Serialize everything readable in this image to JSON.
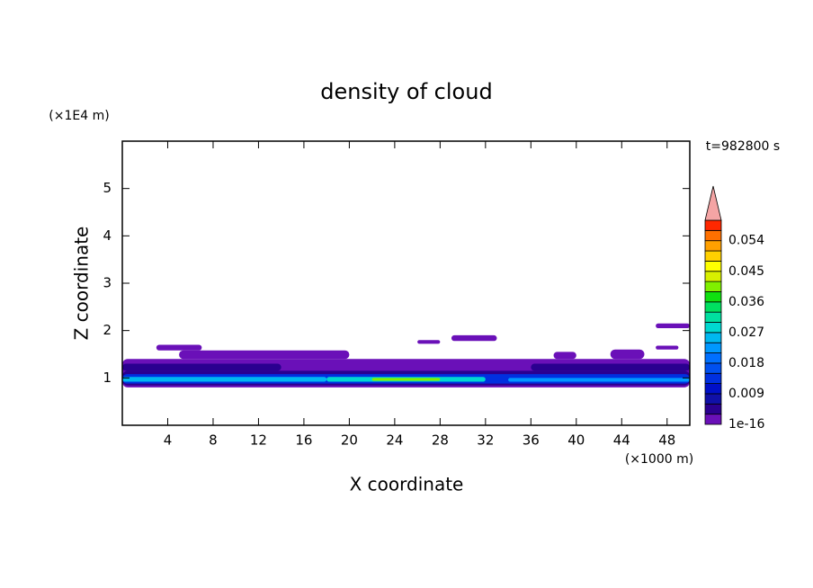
{
  "chart_data": {
    "type": "contour",
    "title": "density of cloud",
    "xlabel": "X coordinate",
    "ylabel": "Z coordinate",
    "x_unit": "(×1000 m)",
    "y_unit": "(×1E4 m)",
    "annotation": "t=982800 s",
    "xlim": [
      0,
      50
    ],
    "ylim": [
      0,
      6
    ],
    "xticks": [
      4,
      8,
      12,
      16,
      20,
      24,
      28,
      32,
      36,
      40,
      44,
      48
    ],
    "yticks": [
      1,
      2,
      3,
      4,
      5
    ],
    "clim": [
      0,
      0.06
    ],
    "level_step": 0.003,
    "cticks": [
      1e-16,
      0.009,
      0.018,
      0.027,
      0.036,
      0.045,
      0.054
    ],
    "colors": [
      "#6a10b8",
      "#2a0090",
      "#1010a8",
      "#0010c8",
      "#0030e0",
      "#0050f0",
      "#0070ff",
      "#0098ff",
      "#00b8f0",
      "#00d8d0",
      "#00e0a0",
      "#00e060",
      "#10e010",
      "#80f000",
      "#d8f000",
      "#ffff00",
      "#ffd000",
      "#ffa000",
      "#ff7000",
      "#ff2800"
    ],
    "extend_color": "#f4a4a4",
    "cells": [
      {
        "x": [
          0,
          50
        ],
        "z": [
          0.8,
          1.4
        ],
        "value": 0.001
      },
      {
        "x": [
          0,
          50
        ],
        "z": [
          0.84,
          1.15
        ],
        "value": 0.004
      },
      {
        "x": [
          0,
          50
        ],
        "z": [
          0.88,
          1.08
        ],
        "value": 0.013
      },
      {
        "x": [
          0,
          18
        ],
        "z": [
          0.92,
          1.02
        ],
        "value": 0.024
      },
      {
        "x": [
          18,
          32
        ],
        "z": [
          0.92,
          1.02
        ],
        "value": 0.027
      },
      {
        "x": [
          34,
          50
        ],
        "z": [
          0.92,
          1.0
        ],
        "value": 0.022
      },
      {
        "x": [
          22,
          28
        ],
        "z": [
          0.94,
          1.0
        ],
        "value": 0.04
      },
      {
        "x": [
          0,
          14
        ],
        "z": [
          1.15,
          1.3
        ],
        "value": 0.004
      },
      {
        "x": [
          36,
          50
        ],
        "z": [
          1.15,
          1.3
        ],
        "value": 0.004
      },
      {
        "x": [
          5,
          20
        ],
        "z": [
          1.4,
          1.58
        ],
        "value": 0.001
      },
      {
        "x": [
          3,
          7
        ],
        "z": [
          1.58,
          1.7
        ],
        "value": 0.001
      },
      {
        "x": [
          26,
          28
        ],
        "z": [
          1.72,
          1.8
        ],
        "value": 0.001
      },
      {
        "x": [
          29,
          33
        ],
        "z": [
          1.78,
          1.9
        ],
        "value": 0.001
      },
      {
        "x": [
          38,
          40
        ],
        "z": [
          1.4,
          1.55
        ],
        "value": 0.001
      },
      {
        "x": [
          43,
          46
        ],
        "z": [
          1.4,
          1.6
        ],
        "value": 0.001
      },
      {
        "x": [
          47,
          50
        ],
        "z": [
          2.05,
          2.15
        ],
        "value": 0.001
      },
      {
        "x": [
          47,
          49
        ],
        "z": [
          1.6,
          1.68
        ],
        "value": 0.001
      }
    ]
  }
}
